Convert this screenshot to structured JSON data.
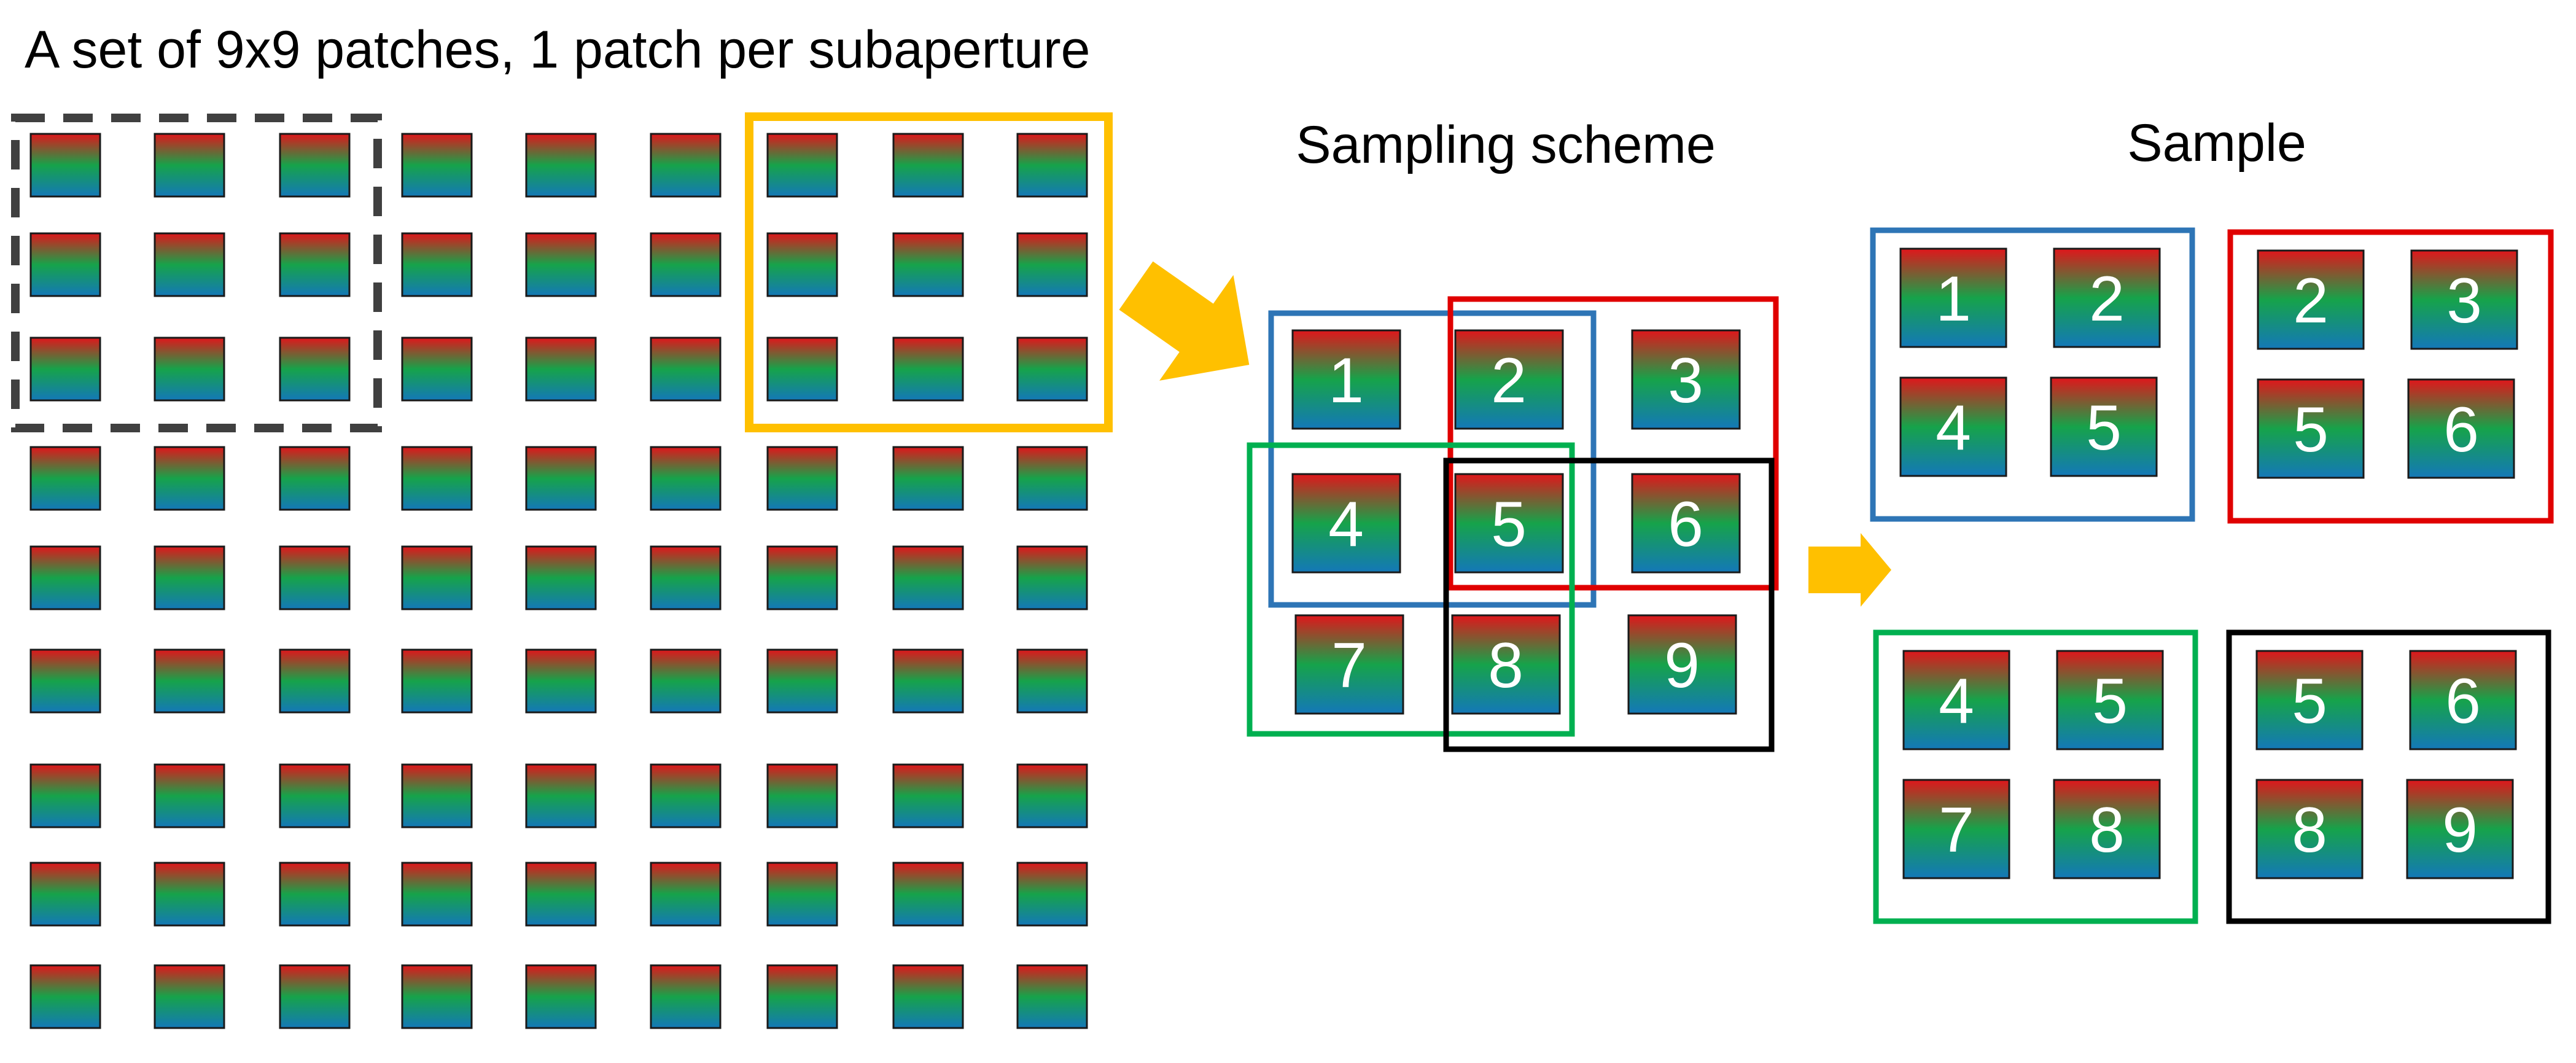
{
  "title": "A set of 9x9 patches, 1 patch per subaperture",
  "scheme_label": "Sampling scheme",
  "sample_label": "Sample",
  "grid": {
    "rows": 9,
    "cols": 9
  },
  "colors": {
    "patch_top": "#e0161b",
    "patch_mid": "#16a34a",
    "patch_bottom": "#1478b8",
    "dashed_box": "#404040",
    "highlight_box": "#ffc000",
    "arrow": "#ffc000",
    "blue_box": "#2e75b6",
    "red_box": "#e00000",
    "green_box": "#00b050",
    "black_box": "#000000"
  },
  "icons": {
    "arrow": "arrow-icon"
  },
  "scheme_numbers": [
    "1",
    "2",
    "3",
    "4",
    "5",
    "6",
    "7",
    "8",
    "9"
  ],
  "samples": [
    {
      "name": "sample-blue",
      "color": "blue",
      "numbers": [
        "1",
        "2",
        "4",
        "5"
      ]
    },
    {
      "name": "sample-red",
      "color": "red",
      "numbers": [
        "2",
        "3",
        "5",
        "6"
      ]
    },
    {
      "name": "sample-green",
      "color": "green",
      "numbers": [
        "4",
        "5",
        "7",
        "8"
      ]
    },
    {
      "name": "sample-black",
      "color": "black",
      "numbers": [
        "5",
        "6",
        "8",
        "9"
      ]
    }
  ]
}
